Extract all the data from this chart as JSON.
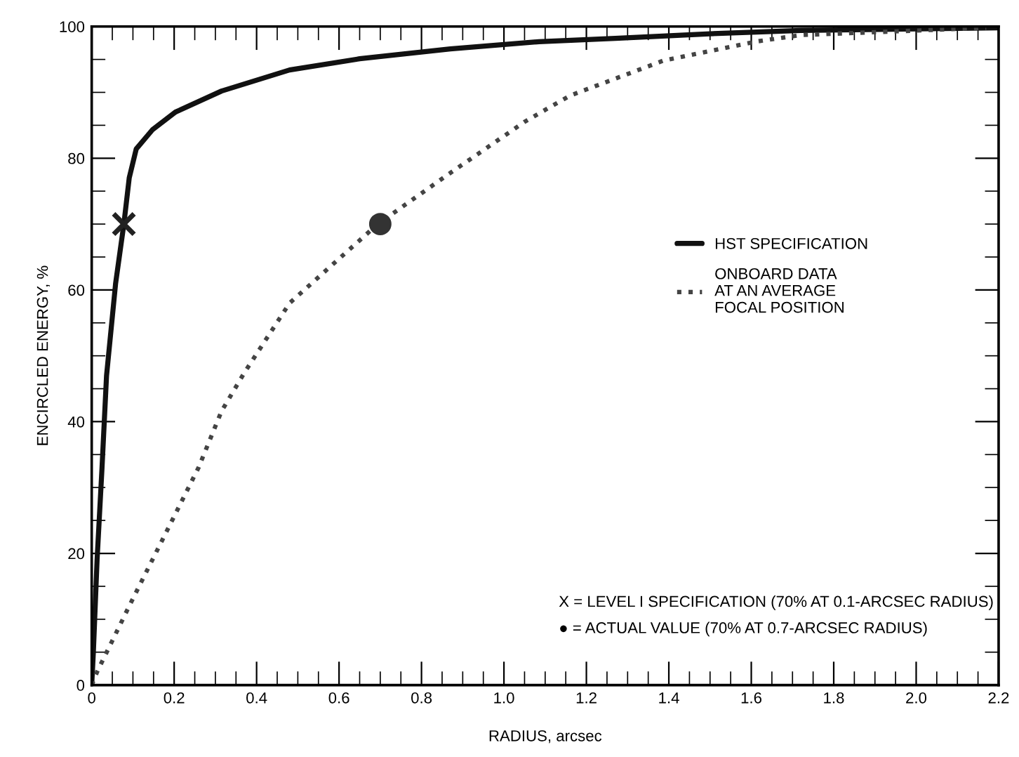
{
  "chart_data": {
    "type": "line",
    "xlabel": "RADIUS, arcsec",
    "ylabel": "ENCIRCLED ENERGY, %",
    "xlim": [
      0,
      2.2
    ],
    "ylim": [
      0,
      100
    ],
    "xticks": [
      0,
      0.2,
      0.4,
      0.6,
      0.8,
      {
        "value": 1.0,
        "label": "1.0"
      },
      1.2,
      1.4,
      1.6,
      1.8,
      {
        "value": 2.0,
        "label": "2.0"
      },
      2.2
    ],
    "yticks": [
      0,
      20,
      40,
      60,
      80,
      100
    ],
    "grid": false,
    "legend": "right",
    "series": [
      {
        "name": "HST SPECIFICATION",
        "line_style": "solid",
        "color": "#111111",
        "x": [
          0,
          0.004,
          0.013,
          0.025,
          0.036,
          0.058,
          0.078,
          0.091,
          0.108,
          0.147,
          0.203,
          0.315,
          0.48,
          0.65,
          0.87,
          1.085,
          1.27,
          1.5,
          1.72,
          2.2
        ],
        "values": [
          0,
          5,
          19,
          33,
          47,
          61,
          70,
          77,
          81.4,
          84.3,
          87,
          90.2,
          93.4,
          95.1,
          96.6,
          97.7,
          98.2,
          98.9,
          99.4,
          99.8
        ]
      },
      {
        "name": "ONBOARD DATA\nAT AN AVERAGE\nFOCAL POSITION",
        "line_style": "dotted",
        "color": "#444444",
        "x": [
          0,
          0.013,
          0.091,
          0.203,
          0.259,
          0.315,
          0.37,
          0.48,
          0.594,
          0.694,
          0.873,
          1.052,
          1.16,
          1.386,
          1.61,
          1.72,
          2.17
        ],
        "values": [
          0,
          2,
          12,
          26,
          33,
          41.6,
          47.4,
          58,
          64.4,
          70,
          77.9,
          85.6,
          89.5,
          94.8,
          97.7,
          98.7,
          99.8
        ]
      },
      {
        "type": "scatter",
        "marker": "cross",
        "color": "#222222",
        "x": [
          0.078
        ],
        "values": [
          70
        ]
      },
      {
        "type": "scatter",
        "marker": "circle",
        "color": "#333333",
        "x": [
          0.7
        ],
        "values": [
          70
        ]
      }
    ],
    "annotations": [
      "X = LEVEL I SPECIFICATION (70% AT 0.1-ARCSEC RADIUS)",
      "● = ACTUAL VALUE (70% AT 0.7-ARCSEC RADIUS)"
    ]
  }
}
